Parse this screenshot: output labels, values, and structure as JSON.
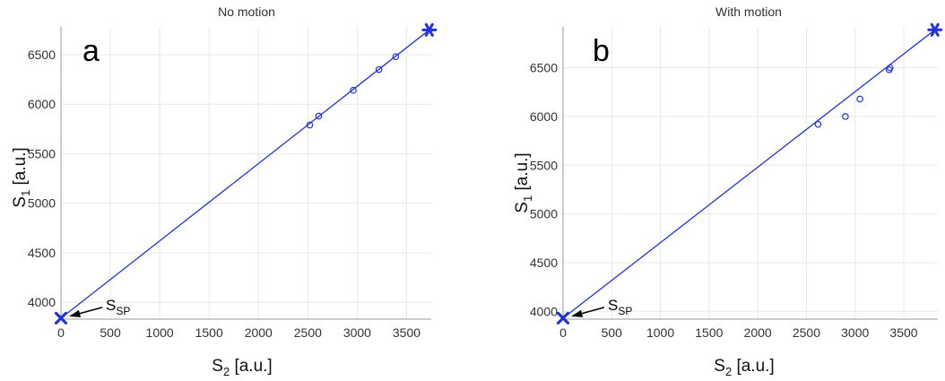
{
  "chart_data": [
    {
      "type": "scatter",
      "panel_letter": "a",
      "title": "No motion",
      "xlabel": "S",
      "xlabel_sub": "2",
      "xlabel_unit": " [a.u.]",
      "ylabel": "S",
      "ylabel_sub": "1",
      "ylabel_unit": " [a.u.]",
      "xlim": [
        0,
        3750
      ],
      "ylim": [
        3830,
        6780
      ],
      "x_ticks": [
        0,
        500,
        1000,
        1500,
        2000,
        2500,
        3000,
        3500
      ],
      "y_ticks": [
        4000,
        4500,
        5000,
        5500,
        6000,
        6500
      ],
      "color": "#2233dd",
      "points": [
        {
          "x": 2520,
          "y": 5790
        },
        {
          "x": 2610,
          "y": 5880
        },
        {
          "x": 2960,
          "y": 6140
        },
        {
          "x": 3220,
          "y": 6350
        },
        {
          "x": 3390,
          "y": 6480
        }
      ],
      "fit_line": [
        {
          "x": 0,
          "y": 3840
        },
        {
          "x": 3730,
          "y": 6750
        }
      ],
      "star_marker": {
        "x": 3730,
        "y": 6750
      },
      "x_marker": {
        "x": 0,
        "y": 3840
      },
      "annotation": {
        "text": "S",
        "sub": "SP",
        "x": 0,
        "y": 3840
      }
    },
    {
      "type": "scatter",
      "panel_letter": "b",
      "title": "With motion",
      "xlabel": "S",
      "xlabel_sub": "2",
      "xlabel_unit": " [a.u.]",
      "ylabel": "S",
      "ylabel_sub": "1",
      "ylabel_unit": " [a.u.]",
      "xlim": [
        0,
        3850
      ],
      "ylim": [
        3920,
        6920
      ],
      "x_ticks": [
        0,
        500,
        1000,
        1500,
        2000,
        2500,
        3000,
        3500
      ],
      "y_ticks": [
        4000,
        4500,
        5000,
        5500,
        6000,
        6500
      ],
      "color": "#2233dd",
      "points": [
        {
          "x": 2620,
          "y": 5920
        },
        {
          "x": 2900,
          "y": 6000
        },
        {
          "x": 3050,
          "y": 6180
        },
        {
          "x": 3350,
          "y": 6480
        },
        {
          "x": 3360,
          "y": 6500
        }
      ],
      "fit_line": [
        {
          "x": 0,
          "y": 3930
        },
        {
          "x": 3820,
          "y": 6890
        }
      ],
      "star_marker": {
        "x": 3820,
        "y": 6890
      },
      "x_marker": {
        "x": 0,
        "y": 3930
      },
      "annotation": {
        "text": "S",
        "sub": "SP",
        "x": 0,
        "y": 3930
      }
    }
  ]
}
